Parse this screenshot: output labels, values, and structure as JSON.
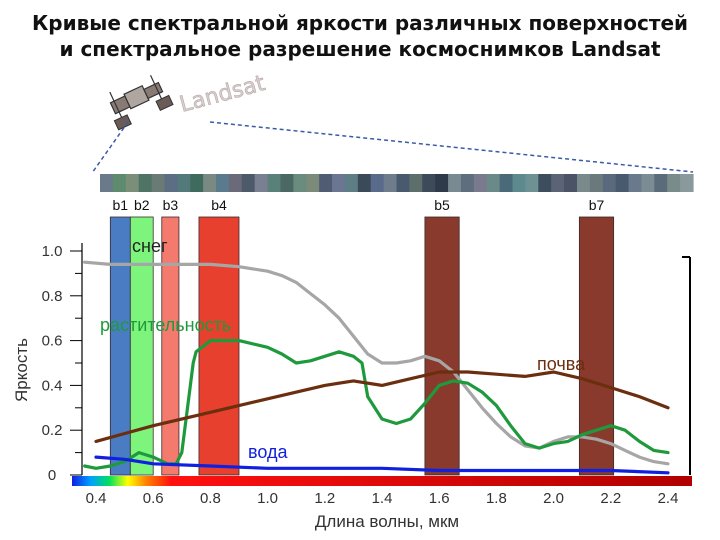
{
  "title_line1": "Кривые спектральной яркости различных поверхностей",
  "title_line2": "и спектральное разрешение космоснимков Landsat",
  "satellite_label": "Landsat",
  "chart_data": {
    "type": "line",
    "xlabel": "Длина волны, мкм",
    "ylabel": "Яркость",
    "xlim": [
      0.35,
      2.45
    ],
    "ylim": [
      0,
      1.05
    ],
    "x_ticks": [
      "0.4",
      "0.6",
      "0.8",
      "1.0",
      "1.2",
      "1.4",
      "1.6",
      "1.8",
      "2.0",
      "2.2",
      "2.4"
    ],
    "y_ticks": [
      "0",
      "0.2",
      "0.4",
      "0.6",
      "0.8",
      "1.0"
    ],
    "grid": false,
    "bands": [
      {
        "label": "b1",
        "x0": 0.45,
        "x1": 0.52,
        "color": "#4a7cc4"
      },
      {
        "label": "b2",
        "x0": 0.52,
        "x1": 0.6,
        "color": "#7df57d"
      },
      {
        "label": "b3",
        "x0": 0.63,
        "x1": 0.69,
        "color": "#f47a6e"
      },
      {
        "label": "b4",
        "x0": 0.76,
        "x1": 0.9,
        "color": "#e8402f"
      },
      {
        "label": "b5",
        "x0": 1.55,
        "x1": 1.67,
        "color": "#8a3a2c"
      },
      {
        "label": "b7",
        "x0": 2.09,
        "x1": 2.21,
        "color": "#8a3a2c"
      }
    ],
    "series": [
      {
        "name": "снег",
        "color": "#a6a6a6",
        "x": [
          0.36,
          0.45,
          0.6,
          0.8,
          0.9,
          1.0,
          1.05,
          1.1,
          1.15,
          1.2,
          1.25,
          1.3,
          1.35,
          1.4,
          1.45,
          1.5,
          1.55,
          1.6,
          1.65,
          1.7,
          1.75,
          1.8,
          1.85,
          1.9,
          1.95,
          2.0,
          2.05,
          2.1,
          2.15,
          2.2,
          2.25,
          2.3,
          2.35,
          2.4
        ],
        "values": [
          0.95,
          0.94,
          0.94,
          0.94,
          0.93,
          0.91,
          0.89,
          0.86,
          0.81,
          0.76,
          0.7,
          0.62,
          0.54,
          0.5,
          0.5,
          0.51,
          0.53,
          0.51,
          0.46,
          0.38,
          0.3,
          0.23,
          0.17,
          0.13,
          0.12,
          0.15,
          0.17,
          0.17,
          0.16,
          0.14,
          0.11,
          0.08,
          0.06,
          0.05
        ]
      },
      {
        "name": "растительность",
        "color": "#1e9a3c",
        "x": [
          0.36,
          0.4,
          0.45,
          0.5,
          0.55,
          0.6,
          0.65,
          0.68,
          0.7,
          0.72,
          0.74,
          0.75,
          0.8,
          0.9,
          1.0,
          1.05,
          1.1,
          1.15,
          1.2,
          1.25,
          1.3,
          1.33,
          1.35,
          1.4,
          1.45,
          1.5,
          1.55,
          1.6,
          1.65,
          1.7,
          1.75,
          1.8,
          1.85,
          1.9,
          1.95,
          2.0,
          2.05,
          2.1,
          2.15,
          2.2,
          2.25,
          2.3,
          2.35,
          2.4
        ],
        "values": [
          0.04,
          0.03,
          0.04,
          0.06,
          0.1,
          0.08,
          0.05,
          0.05,
          0.1,
          0.3,
          0.5,
          0.55,
          0.6,
          0.6,
          0.57,
          0.54,
          0.5,
          0.51,
          0.53,
          0.55,
          0.53,
          0.5,
          0.35,
          0.25,
          0.23,
          0.25,
          0.32,
          0.4,
          0.42,
          0.41,
          0.37,
          0.31,
          0.22,
          0.14,
          0.12,
          0.14,
          0.15,
          0.18,
          0.2,
          0.22,
          0.2,
          0.15,
          0.11,
          0.1
        ]
      },
      {
        "name": "почва",
        "color": "#6b2e0e",
        "x": [
          0.4,
          0.6,
          0.8,
          1.0,
          1.2,
          1.3,
          1.4,
          1.5,
          1.6,
          1.7,
          1.8,
          1.9,
          2.0,
          2.1,
          2.2,
          2.3,
          2.4
        ],
        "values": [
          0.15,
          0.22,
          0.28,
          0.34,
          0.4,
          0.42,
          0.4,
          0.43,
          0.46,
          0.46,
          0.45,
          0.44,
          0.46,
          0.43,
          0.39,
          0.35,
          0.3
        ]
      },
      {
        "name": "вода",
        "color": "#1020e0",
        "x": [
          0.4,
          0.5,
          0.6,
          0.8,
          1.0,
          1.2,
          1.4,
          1.6,
          1.8,
          2.0,
          2.2,
          2.4
        ],
        "values": [
          0.08,
          0.07,
          0.05,
          0.04,
          0.03,
          0.03,
          0.03,
          0.02,
          0.02,
          0.02,
          0.02,
          0.01
        ]
      }
    ],
    "strip_colors": [
      "#6a7a8a",
      "#5e8a6e",
      "#7a8e78",
      "#4f7466",
      "#6a7a74",
      "#5c6e84",
      "#54797a",
      "#3f6a5e",
      "#7a8a82",
      "#5a7a8e",
      "#6b6a7a",
      "#4c5a6a",
      "#7a7f92",
      "#5a807a",
      "#4b6864",
      "#6a8c7e",
      "#7c8a7a",
      "#4f5c74",
      "#6a7692",
      "#5e7e86",
      "#3a4a58",
      "#5a6a8a",
      "#6e7c8c",
      "#4a5a6e",
      "#5e6e6a",
      "#3c4a5a",
      "#2e3a4a",
      "#7a8a92",
      "#5e6e7e",
      "#7a7a8e",
      "#6a8a8a",
      "#4a6a7a",
      "#5c8a8e",
      "#6e9294",
      "#3c4e5e",
      "#5a6476",
      "#4a5466",
      "#7a8a8c",
      "#6a7a7c",
      "#5a6a7c",
      "#485a6e",
      "#6a7a8c",
      "#7c8c94",
      "#5a6c7a",
      "#7a8c8a",
      "#8a9a9c"
    ]
  }
}
